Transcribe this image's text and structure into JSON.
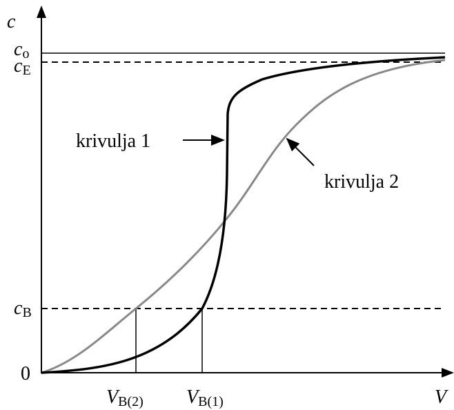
{
  "axes": {
    "y_label": "c",
    "x_label": "V",
    "origin": "0"
  },
  "levels": [
    {
      "symbol": "c",
      "subscript": "o"
    },
    {
      "symbol": "c",
      "subscript": "E"
    },
    {
      "symbol": "c",
      "subscript": "B"
    }
  ],
  "markers": [
    {
      "symbol": "V",
      "subscript": "B(2)"
    },
    {
      "symbol": "V",
      "subscript": "B(1)"
    }
  ],
  "curves": [
    {
      "label": "krivulja 1"
    },
    {
      "label": "krivulja 2"
    }
  ]
}
